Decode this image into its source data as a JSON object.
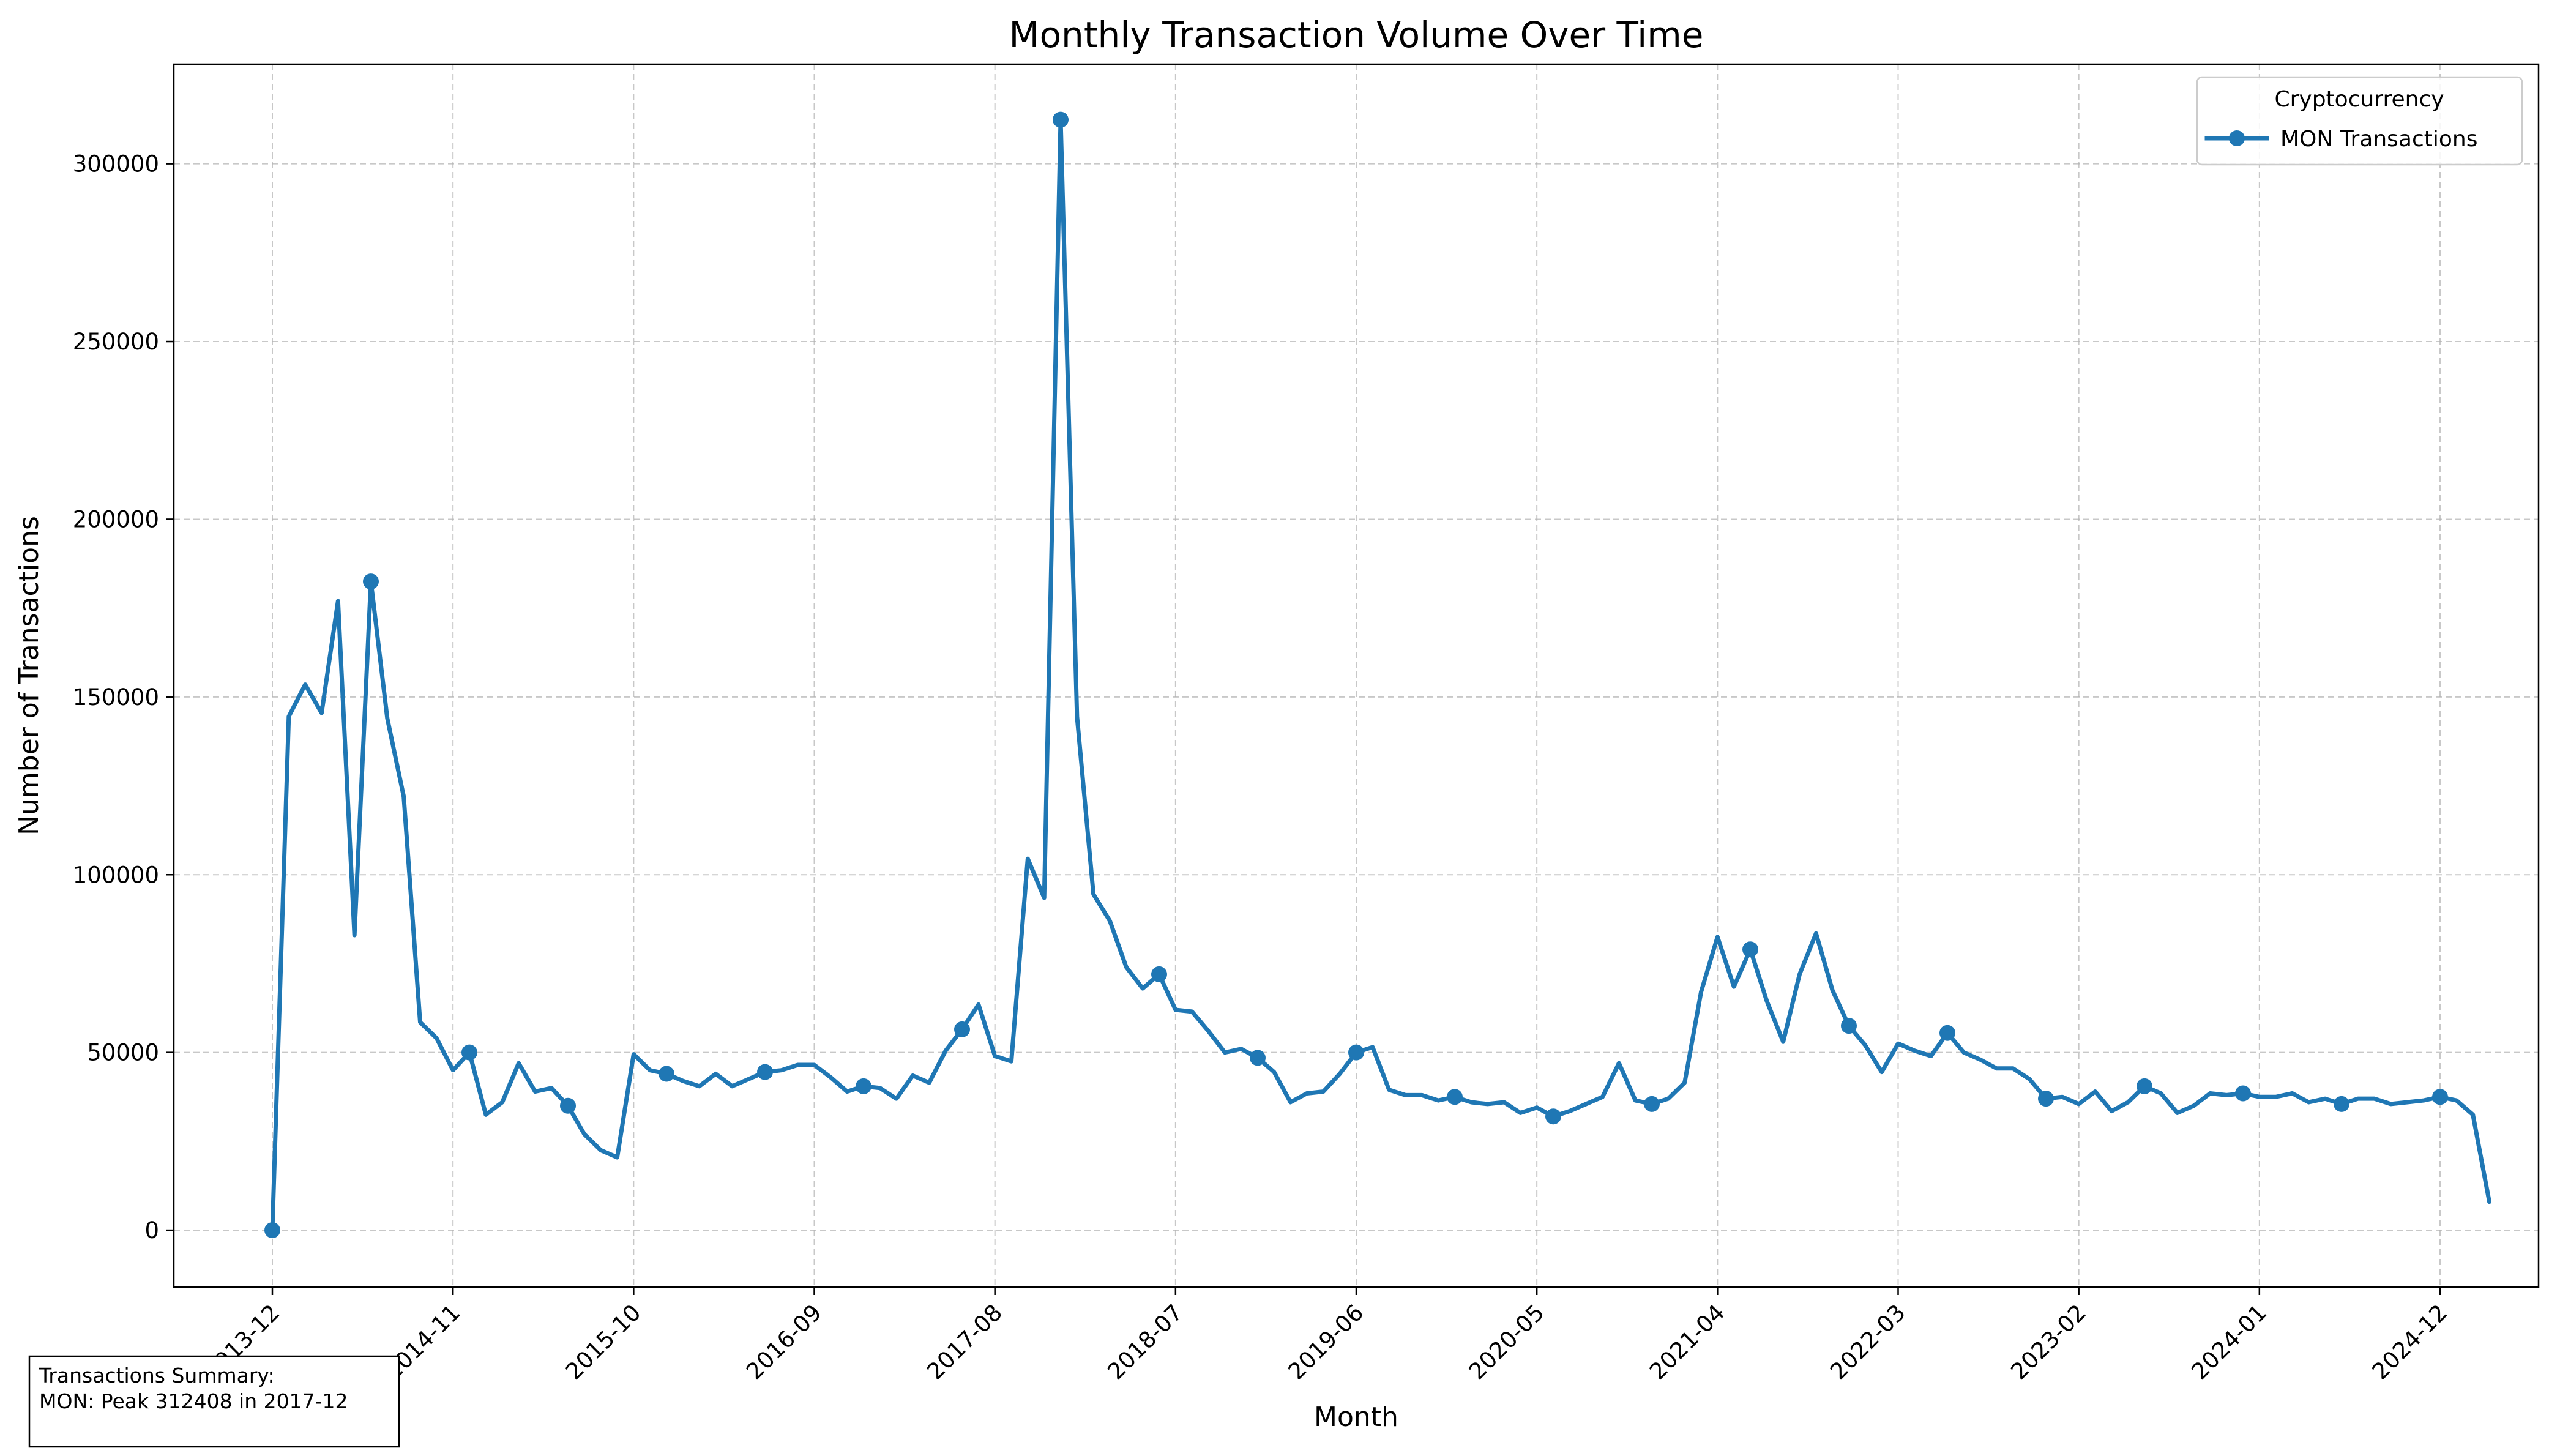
{
  "chart_data": {
    "type": "line",
    "title": "Monthly Transaction Volume Over Time",
    "xlabel": "Month",
    "ylabel": "Number of Transactions",
    "xlim": [
      "2013-06",
      "2025-06"
    ],
    "ylim": [
      -16000,
      328000
    ],
    "grid": true,
    "legend": {
      "title": "Cryptocurrency",
      "placement": "top-right"
    },
    "x_ticks": [
      "2013-12",
      "2014-11",
      "2015-10",
      "2016-09",
      "2017-08",
      "2018-07",
      "2019-06",
      "2020-05",
      "2021-04",
      "2022-03",
      "2023-02",
      "2024-01",
      "2024-12"
    ],
    "y_ticks": [
      0,
      50000,
      100000,
      150000,
      200000,
      250000,
      300000
    ],
    "marker_every": 6,
    "series": [
      {
        "name": "MON Transactions",
        "color": "#1f77b4",
        "x": [
          "2013-12",
          "2014-01",
          "2014-02",
          "2014-03",
          "2014-04",
          "2014-05",
          "2014-06",
          "2014-07",
          "2014-08",
          "2014-09",
          "2014-10",
          "2014-11",
          "2014-12",
          "2015-01",
          "2015-02",
          "2015-03",
          "2015-04",
          "2015-05",
          "2015-06",
          "2015-07",
          "2015-08",
          "2015-09",
          "2015-10",
          "2015-11",
          "2015-12",
          "2016-01",
          "2016-02",
          "2016-03",
          "2016-04",
          "2016-05",
          "2016-06",
          "2016-07",
          "2016-08",
          "2016-09",
          "2016-10",
          "2016-11",
          "2016-12",
          "2017-01",
          "2017-02",
          "2017-03",
          "2017-04",
          "2017-05",
          "2017-06",
          "2017-07",
          "2017-08",
          "2017-09",
          "2017-10",
          "2017-11",
          "2017-12",
          "2018-01",
          "2018-02",
          "2018-03",
          "2018-04",
          "2018-05",
          "2018-06",
          "2018-07",
          "2018-08",
          "2018-09",
          "2018-10",
          "2018-11",
          "2018-12",
          "2019-01",
          "2019-02",
          "2019-03",
          "2019-04",
          "2019-05",
          "2019-06",
          "2019-07",
          "2019-08",
          "2019-09",
          "2019-10",
          "2019-11",
          "2019-12",
          "2020-01",
          "2020-02",
          "2020-03",
          "2020-04",
          "2020-05",
          "2020-06",
          "2020-07",
          "2020-08",
          "2020-09",
          "2020-10",
          "2020-11",
          "2020-12",
          "2021-01",
          "2021-02",
          "2021-03",
          "2021-04",
          "2021-05",
          "2021-06",
          "2021-07",
          "2021-08",
          "2021-09",
          "2021-10",
          "2021-11",
          "2021-12",
          "2022-01",
          "2022-02",
          "2022-03",
          "2022-04",
          "2022-05",
          "2022-06",
          "2022-07",
          "2022-08",
          "2022-09",
          "2022-10",
          "2022-11",
          "2022-12",
          "2023-01",
          "2023-02",
          "2023-03",
          "2023-04",
          "2023-05",
          "2023-06",
          "2023-07",
          "2023-08",
          "2023-09",
          "2023-10",
          "2023-11",
          "2023-12",
          "2024-01",
          "2024-02",
          "2024-03",
          "2024-04",
          "2024-05",
          "2024-06",
          "2024-07",
          "2024-08",
          "2024-09",
          "2024-10",
          "2024-11",
          "2024-12",
          "2025-01",
          "2025-02",
          "2025-03"
        ],
        "values": [
          0,
          144500,
          153500,
          145500,
          177000,
          83000,
          182500,
          144000,
          122000,
          58500,
          54000,
          45000,
          50000,
          32500,
          36000,
          47000,
          39000,
          40000,
          35000,
          27000,
          22500,
          20500,
          49500,
          45000,
          44000,
          42000,
          40500,
          44000,
          40500,
          42500,
          44500,
          45000,
          46500,
          46500,
          43000,
          39000,
          40500,
          40000,
          37000,
          43500,
          41500,
          50500,
          56500,
          63500,
          49000,
          47500,
          104500,
          93500,
          312400,
          144500,
          94500,
          87000,
          74000,
          68000,
          72000,
          62000,
          61500,
          56000,
          50000,
          51000,
          48500,
          44500,
          36000,
          38500,
          39000,
          44000,
          50000,
          51500,
          39500,
          38000,
          38000,
          36500,
          37500,
          36000,
          35500,
          36000,
          33000,
          34500,
          32000,
          33500,
          35500,
          37500,
          47000,
          36500,
          35500,
          37000,
          41500,
          67000,
          82500,
          68500,
          79000,
          64500,
          53000,
          72000,
          83500,
          67500,
          57500,
          52000,
          44500,
          52500,
          50500,
          49000,
          55500,
          50000,
          48000,
          45500,
          45500,
          42500,
          37000,
          37500,
          35500,
          39000,
          33500,
          36000,
          40500,
          38500,
          33000,
          35000,
          38500,
          38000,
          38500,
          37500,
          37500,
          38500,
          36000,
          37000,
          35500,
          37000,
          37000,
          35500,
          36000,
          36500,
          37500,
          36500,
          32500,
          8000
        ]
      }
    ],
    "annotation": {
      "line1": "Transactions Summary:",
      "line2": "MON: Peak 312408 in 2017-12"
    }
  }
}
